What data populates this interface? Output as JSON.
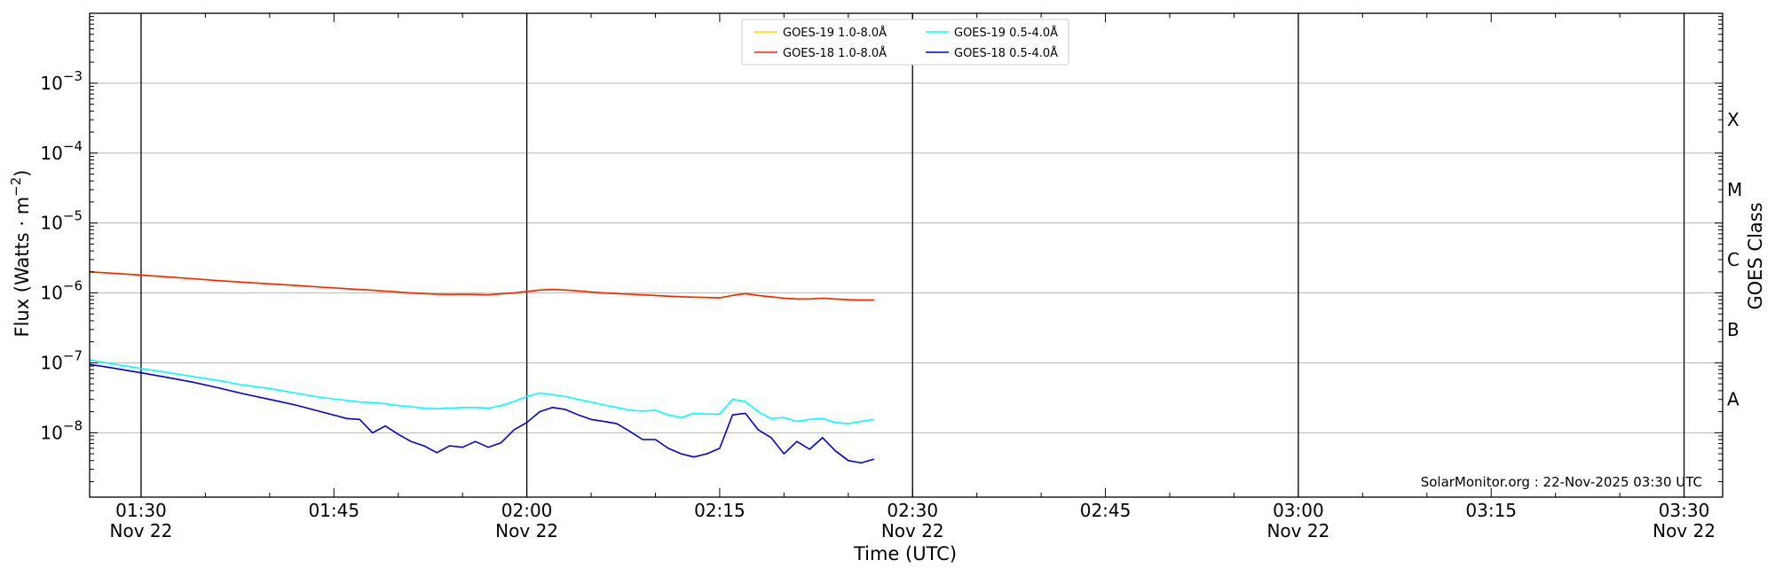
{
  "chart_data": {
    "type": "line",
    "title": "",
    "xlabel": "Time (UTC)",
    "ylabel": "Flux (Watts · m",
    "ylabel_exp": "−2",
    "ylabel_close": ")",
    "y2label": "GOES Class",
    "yscale": "log",
    "ylim": [
      1.2e-09,
      0.01
    ],
    "xlim": [
      "01:26",
      "03:33"
    ],
    "grid": "horizontal",
    "legend_position": "top-center",
    "credit": "SolarMonitor.org : 22-Nov-2025 03:30 UTC",
    "y_ticks": [
      {
        "value": 1e-08,
        "base": "10",
        "exp": "−8"
      },
      {
        "value": 1e-07,
        "base": "10",
        "exp": "−7"
      },
      {
        "value": 1e-06,
        "base": "10",
        "exp": "−6"
      },
      {
        "value": 1e-05,
        "base": "10",
        "exp": "−5"
      },
      {
        "value": 0.0001,
        "base": "10",
        "exp": "−4"
      },
      {
        "value": 0.001,
        "base": "10",
        "exp": "−3"
      }
    ],
    "x_ticks": [
      {
        "time": "01:30",
        "label": "01:30",
        "date": "Nov 22"
      },
      {
        "time": "01:45",
        "label": "01:45",
        "date": ""
      },
      {
        "time": "02:00",
        "label": "02:00",
        "date": "Nov 22"
      },
      {
        "time": "02:15",
        "label": "02:15",
        "date": ""
      },
      {
        "time": "02:30",
        "label": "02:30",
        "date": "Nov 22"
      },
      {
        "time": "02:45",
        "label": "02:45",
        "date": ""
      },
      {
        "time": "03:00",
        "label": "03:00",
        "date": "Nov 22"
      },
      {
        "time": "03:15",
        "label": "03:15",
        "date": ""
      },
      {
        "time": "03:30",
        "label": "03:30",
        "date": "Nov 22"
      }
    ],
    "vertical_lines": [
      "01:30",
      "02:00",
      "02:30",
      "03:00",
      "03:30"
    ],
    "goes_classes": [
      {
        "label": "X",
        "value": 0.0003
      },
      {
        "label": "M",
        "value": 3e-05
      },
      {
        "label": "C",
        "value": 3e-06
      },
      {
        "label": "B",
        "value": 3e-07
      },
      {
        "label": "A",
        "value": 3e-08
      }
    ],
    "legend": [
      {
        "name": "GOES-19 1.0-8.0Å",
        "color": "#ffd700"
      },
      {
        "name": "GOES-18 1.0-8.0Å",
        "color": "#ff2200"
      },
      {
        "name": "GOES-19 0.5-4.0Å",
        "color": "#00ffff"
      },
      {
        "name": "GOES-18 0.5-4.0Å",
        "color": "#0000dd"
      }
    ],
    "x": [
      "01:26",
      "01:28",
      "01:30",
      "01:32",
      "01:34",
      "01:36",
      "01:38",
      "01:40",
      "01:42",
      "01:44",
      "01:46",
      "01:47",
      "01:48",
      "01:49",
      "01:50",
      "01:51",
      "01:52",
      "01:53",
      "01:54",
      "01:55",
      "01:56",
      "01:57",
      "01:58",
      "01:59",
      "02:00",
      "02:01",
      "02:02",
      "02:03",
      "02:04",
      "02:05",
      "02:06",
      "02:07",
      "02:08",
      "02:09",
      "02:10",
      "02:11",
      "02:12",
      "02:13",
      "02:14",
      "02:15",
      "02:16",
      "02:17",
      "02:18",
      "02:19",
      "02:20",
      "02:21",
      "02:22",
      "02:23",
      "02:24",
      "02:25",
      "02:26",
      "02:27"
    ],
    "series": [
      {
        "name": "GOES-19 1.0-8.0Å",
        "color": "#ffd700",
        "values": [
          2e-06,
          1.9e-06,
          1.8e-06,
          1.7e-06,
          1.6e-06,
          1.5e-06,
          1.42e-06,
          1.35e-06,
          1.28e-06,
          1.21e-06,
          1.15e-06,
          1.12e-06,
          1.09e-06,
          1.06e-06,
          1.03e-06,
          1e-06,
          9.8e-07,
          9.6e-07,
          9.5e-07,
          9.6e-07,
          9.5e-07,
          9.4e-07,
          9.7e-07,
          1e-06,
          1.05e-06,
          1.1e-06,
          1.12e-06,
          1.1e-06,
          1.07e-06,
          1.03e-06,
          1e-06,
          9.8e-07,
          9.6e-07,
          9.4e-07,
          9.2e-07,
          9e-07,
          8.8e-07,
          8.7e-07,
          8.6e-07,
          8.5e-07,
          9.2e-07,
          9.8e-07,
          9.2e-07,
          8.8e-07,
          8.4e-07,
          8.2e-07,
          8.2e-07,
          8.4e-07,
          8.2e-07,
          8e-07,
          7.9e-07,
          7.9e-07
        ]
      },
      {
        "name": "GOES-18 1.0-8.0Å",
        "color": "#ff2200",
        "values": [
          2e-06,
          1.9e-06,
          1.8e-06,
          1.7e-06,
          1.6e-06,
          1.5e-06,
          1.42e-06,
          1.35e-06,
          1.28e-06,
          1.21e-06,
          1.15e-06,
          1.12e-06,
          1.09e-06,
          1.06e-06,
          1.03e-06,
          1e-06,
          9.8e-07,
          9.6e-07,
          9.5e-07,
          9.6e-07,
          9.5e-07,
          9.4e-07,
          9.7e-07,
          1e-06,
          1.05e-06,
          1.1e-06,
          1.12e-06,
          1.1e-06,
          1.07e-06,
          1.03e-06,
          1e-06,
          9.8e-07,
          9.6e-07,
          9.4e-07,
          9.2e-07,
          9e-07,
          8.8e-07,
          8.7e-07,
          8.6e-07,
          8.5e-07,
          9.2e-07,
          9.8e-07,
          9.2e-07,
          8.8e-07,
          8.4e-07,
          8.2e-07,
          8.2e-07,
          8.4e-07,
          8.2e-07,
          8e-07,
          7.9e-07,
          7.9e-07
        ]
      },
      {
        "name": "GOES-19 0.5-4.0Å",
        "color": "#00ffff",
        "values": [
          1.1e-07,
          9.5e-08,
          8.3e-08,
          7.3e-08,
          6.4e-08,
          5.6e-08,
          4.8e-08,
          4.3e-08,
          3.7e-08,
          3.2e-08,
          2.9e-08,
          2.75e-08,
          2.7e-08,
          2.6e-08,
          2.45e-08,
          2.35e-08,
          2.25e-08,
          2.2e-08,
          2.25e-08,
          2.3e-08,
          2.3e-08,
          2.25e-08,
          2.45e-08,
          2.8e-08,
          3.3e-08,
          3.7e-08,
          3.5e-08,
          3.3e-08,
          3e-08,
          2.75e-08,
          2.5e-08,
          2.3e-08,
          2.1e-08,
          2.05e-08,
          2.1e-08,
          1.8e-08,
          1.65e-08,
          1.9e-08,
          1.85e-08,
          1.85e-08,
          3e-08,
          2.8e-08,
          2e-08,
          1.6e-08,
          1.65e-08,
          1.45e-08,
          1.55e-08,
          1.6e-08,
          1.4e-08,
          1.35e-08,
          1.45e-08,
          1.55e-08
        ]
      },
      {
        "name": "GOES-18 0.5-4.0Å",
        "color": "#0000dd",
        "values": [
          9.5e-08,
          8.3e-08,
          7.2e-08,
          6.2e-08,
          5.3e-08,
          4.4e-08,
          3.6e-08,
          3e-08,
          2.5e-08,
          2e-08,
          1.6e-08,
          1.55e-08,
          1e-08,
          1.25e-08,
          9.5e-09,
          7.5e-09,
          6.5e-09,
          5.2e-09,
          6.5e-09,
          6.2e-09,
          7.5e-09,
          6.2e-09,
          7.2e-09,
          1.1e-08,
          1.4e-08,
          2e-08,
          2.3e-08,
          2.15e-08,
          1.8e-08,
          1.55e-08,
          1.45e-08,
          1.35e-08,
          1.05e-08,
          8e-09,
          8e-09,
          6e-09,
          5e-09,
          4.5e-09,
          5e-09,
          6e-09,
          1.8e-08,
          1.9e-08,
          1.1e-08,
          8.5e-09,
          5e-09,
          7.5e-09,
          5.8e-09,
          8.5e-09,
          5.5e-09,
          4e-09,
          3.7e-09,
          4.2e-09
        ]
      }
    ]
  }
}
